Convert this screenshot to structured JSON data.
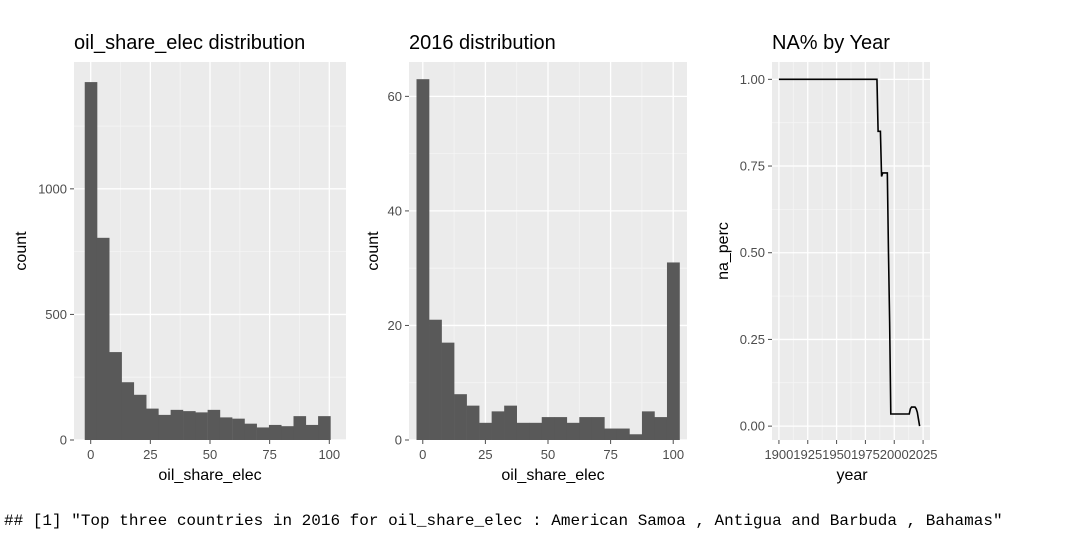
{
  "chart_data": [
    {
      "type": "bar",
      "title": "oil_share_elec  distribution",
      "xlabel": "oil_share_elec",
      "ylabel": "count",
      "xlim": [
        -7,
        107
      ],
      "ylim": [
        0,
        1505
      ],
      "xticks": [
        0,
        25,
        50,
        75,
        100
      ],
      "xtick_labels": [
        "0",
        "25",
        "50",
        "75",
        "100"
      ],
      "yticks": [
        0,
        500,
        1000
      ],
      "ytick_labels": [
        "0",
        "500",
        "1000"
      ],
      "grid": true,
      "bin_width": 5.15,
      "bin_starts": [
        -2.5,
        2.6,
        7.8,
        12.9,
        18.1,
        23.2,
        28.4,
        33.5,
        38.7,
        43.8,
        49.0,
        54.1,
        59.3,
        64.4,
        69.6,
        74.7,
        79.9,
        85.0,
        90.2,
        95.3
      ],
      "values": [
        1425,
        805,
        350,
        230,
        180,
        125,
        100,
        120,
        115,
        110,
        120,
        90,
        85,
        65,
        50,
        60,
        55,
        95,
        60,
        95
      ]
    },
    {
      "type": "bar",
      "title": "2016 distribution",
      "xlabel": "oil_share_elec",
      "ylabel": "count",
      "xlim": [
        -5.5,
        105.5
      ],
      "ylim": [
        0,
        66
      ],
      "xticks": [
        0,
        25,
        50,
        75,
        100
      ],
      "xtick_labels": [
        "0",
        "25",
        "50",
        "75",
        "100"
      ],
      "yticks": [
        0,
        20,
        40,
        60
      ],
      "ytick_labels": [
        "0",
        "20",
        "40",
        "60"
      ],
      "grid": true,
      "bin_width": 5.0,
      "bin_starts": [
        -2.5,
        2.5,
        7.5,
        12.5,
        17.5,
        22.5,
        27.5,
        32.5,
        37.5,
        42.5,
        47.5,
        52.5,
        57.5,
        62.5,
        67.5,
        72.5,
        77.5,
        82.5,
        87.5,
        92.5,
        97.5
      ],
      "values": [
        63,
        21,
        17,
        8,
        6,
        3,
        5,
        6,
        3,
        3,
        4,
        4,
        3,
        4,
        4,
        2,
        2,
        1,
        5,
        4,
        31
      ]
    },
    {
      "type": "line",
      "title": "NA% by Year",
      "xlabel": "year",
      "ylabel": "na_perc",
      "xlim": [
        1894,
        2031
      ],
      "ylim": [
        -0.04,
        1.05
      ],
      "xticks": [
        1900,
        1925,
        1950,
        1975,
        2000,
        2025
      ],
      "xtick_labels": [
        "1900",
        "1925",
        "1950",
        "1975",
        "2000",
        "2025"
      ],
      "yticks": [
        0,
        0.25,
        0.5,
        0.75,
        1.0
      ],
      "ytick_labels": [
        "0.00",
        "0.25",
        "0.50",
        "0.75",
        "1.00"
      ],
      "grid": true,
      "x": [
        1900,
        1984,
        1985,
        1986,
        1987,
        1988,
        1989,
        1990,
        1991,
        1992,
        1993,
        1994,
        1995,
        1996,
        1997,
        1998,
        1999,
        2000,
        2001,
        2002,
        2003,
        2004,
        2005,
        2006,
        2007,
        2008,
        2009,
        2010,
        2011,
        2012,
        2013,
        2014,
        2015,
        2016,
        2017,
        2018,
        2019,
        2020,
        2021,
        2022
      ],
      "y": [
        1.0,
        1.0,
        1.0,
        0.85,
        0.85,
        0.85,
        0.72,
        0.73,
        0.73,
        0.73,
        0.73,
        0.73,
        0.5,
        0.3,
        0.035,
        0.035,
        0.035,
        0.035,
        0.035,
        0.035,
        0.035,
        0.035,
        0.035,
        0.035,
        0.035,
        0.035,
        0.035,
        0.035,
        0.035,
        0.035,
        0.035,
        0.05,
        0.055,
        0.055,
        0.055,
        0.055,
        0.05,
        0.04,
        0.02,
        0.0
      ]
    }
  ],
  "console": {
    "text": "## [1] \"Top three countries in 2016 for oil_share_elec : American Samoa , Antigua and Barbuda , Bahamas\""
  },
  "colors": {
    "panel": "#ebebeb",
    "grid_major": "#ffffff",
    "bar": "#595959",
    "line": "#000000",
    "tick": "#4d4d4d"
  }
}
